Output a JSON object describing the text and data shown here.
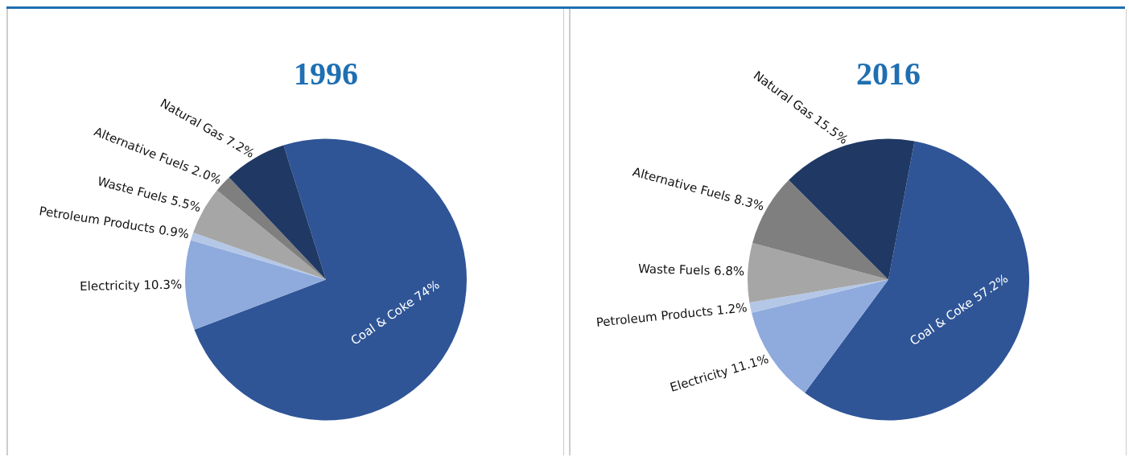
{
  "chart_data": [
    {
      "type": "pie",
      "title": "1996",
      "categories": [
        "Coal & Coke",
        "Electricity",
        "Petroleum Products",
        "Waste Fuels",
        "Alternative Fuels",
        "Natural Gas"
      ],
      "values": [
        74,
        10.3,
        0.9,
        5.5,
        2.0,
        7.2
      ],
      "value_labels": [
        "74%",
        "10.3%",
        "0.9%",
        "5.5%",
        "2.0%",
        "7.2%"
      ],
      "colors": [
        "#2f5597",
        "#8faadc",
        "#b4c7e7",
        "#a6a6a6",
        "#7f7f7f",
        "#203864"
      ],
      "legend": false
    },
    {
      "type": "pie",
      "title": "2016",
      "categories": [
        "Coal & Coke",
        "Electricity",
        "Petroleum Products",
        "Waste Fuels",
        "Alternative Fuels",
        "Natural Gas"
      ],
      "values": [
        57.2,
        11.1,
        1.2,
        6.8,
        8.3,
        15.5
      ],
      "value_labels": [
        "57.2%",
        "11.1%",
        "1.2%",
        "6.8%",
        "8.3%",
        "15.5%"
      ],
      "colors": [
        "#2f5597",
        "#8faadc",
        "#b4c7e7",
        "#a6a6a6",
        "#7f7f7f",
        "#203864"
      ],
      "legend": false
    }
  ]
}
